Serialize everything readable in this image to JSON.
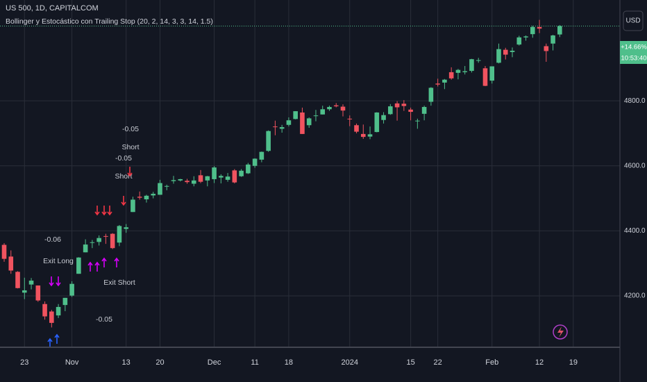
{
  "header": {
    "symbol": "US 500, 1D, CAPITALCOM",
    "indicator": "Bollinger y Estocástico con Trailing Stop (20, 2, 14, 3, 3, 14, 1.5)",
    "currency": "USD",
    "price_badge": "+14.66%",
    "countdown": "10:53:40"
  },
  "chart_data": {
    "type": "candlestick",
    "categories": [
      null,
      null,
      null,
      "23",
      null,
      null,
      null,
      null,
      null,
      null,
      "Nov",
      null,
      null,
      null,
      null,
      null,
      null,
      null,
      "13",
      null,
      null,
      null,
      null,
      "20",
      null,
      null,
      null,
      null,
      null,
      null,
      null,
      "Dec",
      null,
      null,
      null,
      null,
      null,
      "11",
      null,
      null,
      null,
      null,
      "18",
      null,
      null,
      null,
      null,
      null,
      null,
      null,
      null,
      "2024",
      null,
      null,
      null,
      null,
      null,
      null,
      null,
      null,
      "15",
      null,
      null,
      null,
      "22",
      null,
      null,
      null,
      null,
      null,
      null,
      null,
      "Feb",
      null,
      null,
      null,
      null,
      null,
      null,
      "12",
      null,
      null,
      null,
      null,
      "19"
    ],
    "open": [
      4357,
      4321,
      4274,
      4210,
      4235,
      4232,
      4175,
      4152,
      4140,
      4172,
      4201,
      4268,
      4334,
      4364,
      4366,
      4384,
      4391,
      4364,
      4406,
      4458,
      4505,
      4497,
      4509,
      4511,
      4538,
      4553,
      4555,
      4554,
      4545,
      4571,
      4555,
      4559,
      4564,
      4557,
      4586,
      4568,
      4577,
      4600,
      4619,
      4646,
      4721,
      4714,
      4726,
      4744,
      4764,
      4725,
      4754,
      4758,
      4774,
      4786,
      4782,
      4745,
      4725,
      4698,
      4690,
      4704,
      4741,
      4759,
      4792,
      4791,
      4773,
      4739,
      4760,
      4797,
      4853,
      4856,
      4888,
      4886,
      4888,
      4892,
      4925,
      4900,
      4862,
      4917,
      4957,
      4950,
      4973,
      4995,
      5005,
      5027,
      4968,
      4976,
      5004,
      null,
      null
    ],
    "high": [
      4362,
      4340,
      4276,
      4256,
      4255,
      4232,
      4183,
      4157,
      4175,
      4194,
      4245,
      4319,
      4374,
      4372,
      4386,
      4391,
      4393,
      4418,
      4421,
      4505,
      4521,
      4511,
      4520,
      4557,
      4542,
      4569,
      4560,
      4560,
      4568,
      4587,
      4569,
      4599,
      4574,
      4578,
      4590,
      4590,
      4609,
      4623,
      4644,
      4709,
      4739,
      4726,
      4749,
      4768,
      4779,
      4749,
      4772,
      4785,
      4785,
      4793,
      4789,
      4755,
      4730,
      4727,
      4721,
      4765,
      4765,
      4790,
      4799,
      4802,
      4779,
      4745,
      4785,
      4842,
      4868,
      4867,
      4903,
      4898,
      4907,
      4929,
      4932,
      4907,
      4906,
      4976,
      4963,
      4964,
      5000,
      5001,
      5031,
      5049,
      4976,
      5003,
      5033,
      null,
      null
    ],
    "low": [
      4305,
      4268,
      4223,
      4190,
      4220,
      4182,
      4127,
      4103,
      4132,
      4153,
      4197,
      4268,
      4334,
      4347,
      4355,
      4360,
      4344,
      4353,
      4394,
      4458,
      4496,
      4487,
      4500,
      4511,
      4525,
      4545,
      4552,
      4545,
      4537,
      4547,
      4537,
      4547,
      4546,
      4551,
      4546,
      4566,
      4575,
      4594,
      4611,
      4643,
      4694,
      4702,
      4721,
      4743,
      4698,
      4717,
      4737,
      4758,
      4769,
      4780,
      4752,
      4722,
      4700,
      4683,
      4682,
      4703,
      4730,
      4757,
      4739,
      4769,
      4740,
      4714,
      4740,
      4785,
      4844,
      4836,
      4865,
      4866,
      4881,
      4887,
      4917,
      4845,
      4853,
      4915,
      4927,
      4934,
      4970,
      4985,
      4994,
      5008,
      4920,
      4955,
      4996,
      null,
      null
    ],
    "close": [
      4314,
      4278,
      4224,
      4217,
      4247,
      4186,
      4137,
      4117,
      4166,
      4194,
      4237,
      4318,
      4358,
      4365,
      4378,
      4383,
      4347,
      4415,
      4411,
      4496,
      4502,
      4508,
      4514,
      4547,
      4538,
      4556,
      4559,
      4550,
      4555,
      4551,
      4568,
      4595,
      4569,
      4567,
      4549,
      4585,
      4604,
      4622,
      4643,
      4707,
      4719,
      4719,
      4740,
      4768,
      4698,
      4746,
      4755,
      4774,
      4781,
      4783,
      4770,
      4743,
      4705,
      4689,
      4697,
      4764,
      4756,
      4783,
      4780,
      4784,
      4766,
      4739,
      4781,
      4840,
      4850,
      4865,
      4869,
      4895,
      4891,
      4928,
      4925,
      4846,
      4906,
      4959,
      4942,
      4954,
      4995,
      4998,
      5027,
      5022,
      4953,
      5001,
      5030,
      null,
      null
    ],
    "up_color": "#4fbf8b",
    "down_color": "#f0535f",
    "ylim": [
      4042,
      5110
    ],
    "yticks": [
      {
        "value": 4200,
        "label": "4200.0"
      },
      {
        "value": 4400,
        "label": "4400.0"
      },
      {
        "value": 4600,
        "label": "4600.0"
      },
      {
        "value": 4800,
        "label": "4800.0"
      }
    ],
    "grid": true,
    "annotations": [
      "-0.05",
      "Short",
      "-0.05",
      "Short",
      "Exit Long",
      "-0.06",
      "Exit Short",
      "-0.05"
    ]
  }
}
